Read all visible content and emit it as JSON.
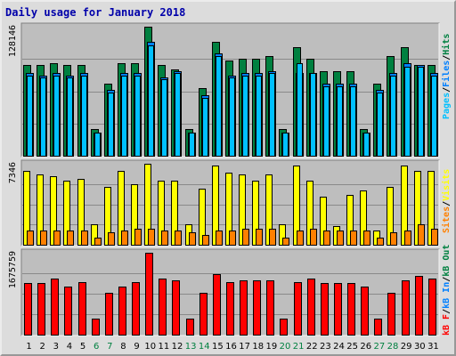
{
  "title": "Daily usage for January 2018",
  "colors": {
    "hits": "#008040",
    "files": "#0080ff",
    "pages": "#00c0ff",
    "visits": "#ffff00",
    "sites": "#ff8000",
    "kbytes": "#ff0000",
    "weekend_label": "#008040",
    "weekday_label": "#000000",
    "separator": "#000000"
  },
  "legend": {
    "hits_pages": [
      "Pages",
      "/",
      "Files",
      "/",
      "Hits"
    ],
    "visits_sites": [
      "Sites",
      "/",
      "Visits"
    ],
    "kbytes": [
      "kB F",
      "/",
      "kB In",
      "/",
      "kB Out"
    ]
  },
  "chart_data": [
    {
      "type": "bar",
      "panel": "hits-files-pages",
      "max_label": "128146",
      "ylim": [
        0,
        128146
      ],
      "days": [
        "1",
        "2",
        "3",
        "4",
        "5",
        "6",
        "7",
        "8",
        "9",
        "10",
        "11",
        "12",
        "13",
        "14",
        "15",
        "16",
        "17",
        "18",
        "19",
        "20",
        "21",
        "22",
        "23",
        "24",
        "25",
        "26",
        "27",
        "28",
        "29",
        "30",
        "31"
      ],
      "weekend_days": [
        "6",
        "7",
        "13",
        "14",
        "20",
        "21",
        "27",
        "28"
      ],
      "series": [
        {
          "name": "Hits",
          "values": [
            90200,
            90200,
            92300,
            90200,
            90200,
            26200,
            71400,
            92300,
            92300,
            128100,
            90200,
            86000,
            26200,
            67200,
            113000,
            94400,
            96500,
            96500,
            98600,
            26200,
            107600,
            96500,
            84000,
            84000,
            84000,
            26200,
            71400,
            98600,
            107600,
            90200,
            90200
          ]
        },
        {
          "name": "Files",
          "values": [
            81800,
            79700,
            81800,
            79700,
            81800,
            23100,
            65100,
            81800,
            81800,
            113000,
            77700,
            83900,
            23100,
            59900,
            101400,
            79700,
            81800,
            81800,
            83900,
            23100,
            81800,
            81800,
            71400,
            71400,
            71400,
            23100,
            65100,
            81800,
            92300,
            90200,
            81800
          ]
        },
        {
          "name": "Pages",
          "values": [
            79700,
            77700,
            79700,
            77700,
            79700,
            23100,
            63000,
            79700,
            79700,
            109800,
            75600,
            81800,
            23100,
            57800,
            98600,
            77700,
            79700,
            79700,
            81800,
            23100,
            92300,
            81800,
            69300,
            69300,
            69300,
            23100,
            63000,
            79700,
            88100,
            88100,
            79700
          ]
        }
      ]
    },
    {
      "type": "bar",
      "panel": "visits-sites",
      "max_label": "7346",
      "ylim": [
        0,
        7346
      ],
      "series": [
        {
          "name": "Visits",
          "values": [
            6740,
            6370,
            6190,
            5820,
            6010,
            1860,
            5270,
            6740,
            5450,
            7350,
            5820,
            5820,
            1860,
            5080,
            7160,
            6560,
            6370,
            5820,
            6370,
            1860,
            7160,
            5820,
            4350,
            1680,
            4530,
            4900,
            1310,
            5270,
            7160,
            6740,
            6740
          ]
        },
        {
          "name": "Sites",
          "values": [
            1310,
            1310,
            1310,
            1310,
            1310,
            670,
            1130,
            1310,
            1490,
            1490,
            1310,
            1310,
            1130,
            880,
            1310,
            1310,
            1490,
            1490,
            1490,
            670,
            1310,
            1490,
            1310,
            1310,
            1310,
            1310,
            670,
            1130,
            1310,
            1860,
            1490
          ]
        }
      ]
    },
    {
      "type": "bar",
      "panel": "kbytes",
      "max_label": "1675759",
      "ylim": [
        0,
        1675759
      ],
      "series": [
        {
          "name": "kB F",
          "values": [
            1050000,
            1050000,
            1150000,
            980000,
            1080000,
            330000,
            850000,
            980000,
            1080000,
            1675759,
            1150000,
            1120000,
            330000,
            850000,
            1230000,
            1080000,
            1110000,
            1110000,
            1110000,
            330000,
            1080000,
            1150000,
            1050000,
            1050000,
            1050000,
            980000,
            330000,
            850000,
            1110000,
            1210000,
            1150000
          ]
        }
      ]
    }
  ]
}
